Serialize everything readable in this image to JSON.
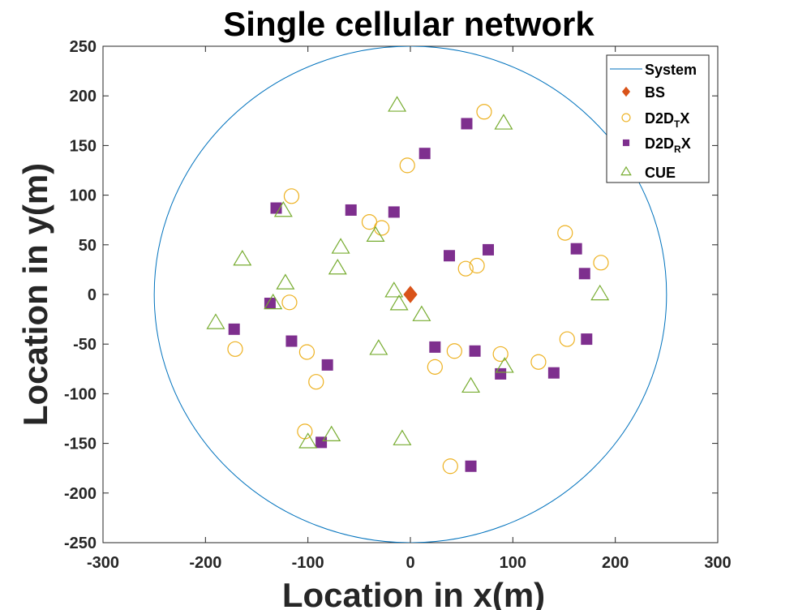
{
  "chart_data": {
    "type": "scatter",
    "title": "Single cellular network",
    "xlabel": "Location in x(m)",
    "ylabel": "Location in y(m)",
    "xlim": [
      -300,
      300
    ],
    "ylim": [
      -250,
      250
    ],
    "xticks": [
      -300,
      -200,
      -100,
      0,
      100,
      200,
      300
    ],
    "yticks": [
      -250,
      -200,
      -150,
      -100,
      -50,
      0,
      50,
      100,
      150,
      200,
      250
    ],
    "grid": false,
    "legend_position": "top-right",
    "system": {
      "shape": "circle",
      "center": [
        0,
        0
      ],
      "radius": 250,
      "color": "#0072bd"
    },
    "legend": [
      {
        "key": "system",
        "base": "System",
        "sub": "",
        "tail": ""
      },
      {
        "key": "bs",
        "base": "BS",
        "sub": "",
        "tail": ""
      },
      {
        "key": "d2dtx",
        "base": "D2D",
        "sub": "T",
        "tail": "X"
      },
      {
        "key": "d2drx",
        "base": "D2D",
        "sub": "R",
        "tail": "X"
      },
      {
        "key": "cue",
        "base": "CUE",
        "sub": "",
        "tail": ""
      }
    ],
    "series": [
      {
        "key": "bs",
        "marker": "diamond",
        "color": "#d95319",
        "points": [
          [
            0,
            0
          ]
        ]
      },
      {
        "key": "d2dtx",
        "marker": "circle",
        "color": "#edb120",
        "points": [
          [
            72,
            184
          ],
          [
            -3,
            130
          ],
          [
            -116,
            99
          ],
          [
            -40,
            73
          ],
          [
            -28,
            67
          ],
          [
            151,
            62
          ],
          [
            186,
            32
          ],
          [
            54,
            26
          ],
          [
            65,
            29
          ],
          [
            -118,
            -8
          ],
          [
            -171,
            -55
          ],
          [
            -101,
            -58
          ],
          [
            -92,
            -88
          ],
          [
            -103,
            -138
          ],
          [
            43,
            -57
          ],
          [
            88,
            -60
          ],
          [
            24,
            -73
          ],
          [
            125,
            -68
          ],
          [
            153,
            -45
          ],
          [
            39,
            -173
          ]
        ]
      },
      {
        "key": "d2drx",
        "marker": "square",
        "color": "#7e2f8e",
        "points": [
          [
            55,
            172
          ],
          [
            14,
            142
          ],
          [
            -131,
            87
          ],
          [
            -58,
            85
          ],
          [
            -16,
            83
          ],
          [
            76,
            45
          ],
          [
            38,
            39
          ],
          [
            162,
            46
          ],
          [
            170,
            21
          ],
          [
            -137,
            -9
          ],
          [
            -172,
            -35
          ],
          [
            -116,
            -47
          ],
          [
            -81,
            -71
          ],
          [
            24,
            -53
          ],
          [
            63,
            -57
          ],
          [
            88,
            -80
          ],
          [
            140,
            -79
          ],
          [
            172,
            -45
          ],
          [
            -87,
            -149
          ],
          [
            59,
            -173
          ]
        ]
      },
      {
        "key": "cue",
        "marker": "triangle",
        "color": "#77ac30",
        "points": [
          [
            -13,
            190
          ],
          [
            91,
            172
          ],
          [
            -124,
            84
          ],
          [
            -68,
            47
          ],
          [
            -34,
            59
          ],
          [
            -164,
            35
          ],
          [
            -71,
            26
          ],
          [
            -122,
            11
          ],
          [
            -16,
            3
          ],
          [
            -11,
            -10
          ],
          [
            -134,
            -9
          ],
          [
            185,
            0
          ],
          [
            11,
            -21
          ],
          [
            -190,
            -29
          ],
          [
            -31,
            -55
          ],
          [
            92,
            -73
          ],
          [
            59,
            -93
          ],
          [
            -77,
            -142
          ],
          [
            -100,
            -149
          ],
          [
            -8,
            -146
          ]
        ]
      }
    ]
  }
}
